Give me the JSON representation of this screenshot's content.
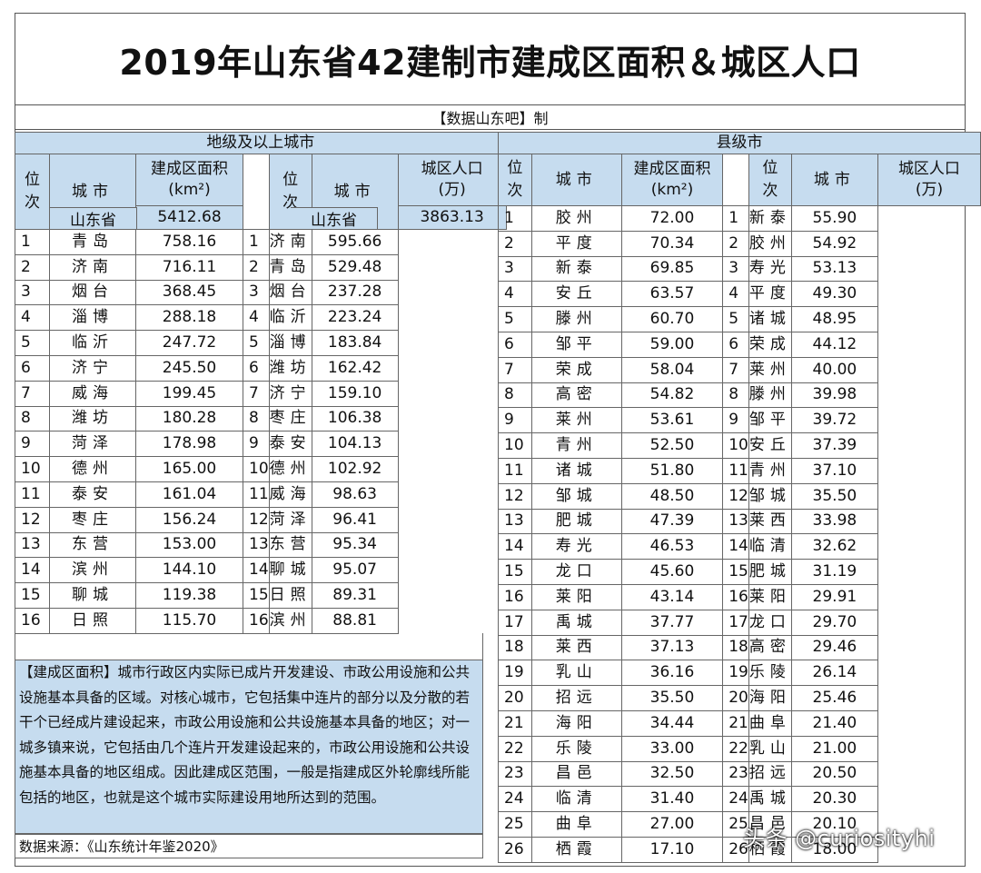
{
  "title": "2019年山东省42建制市建成区面积＆城区人口",
  "maker": "【数据山东吧】制",
  "prefecture": {
    "section": "地级及以上城市",
    "rank_header": "位次",
    "city_header": "城市",
    "area_header_line1": "建成区面积",
    "area_header_line2": "(km²)",
    "pop_header_line1": "城区人口",
    "pop_header_line2": "(万)",
    "area_total_name": "山东省",
    "area_total_value": "5412.68",
    "pop_total_name": "山东省",
    "pop_total_value": "3863.13",
    "rows": [
      {
        "r1": "1",
        "c1": "青岛",
        "v1": "758.16",
        "r2": "1",
        "c2": "济南",
        "v2": "595.66"
      },
      {
        "r1": "2",
        "c1": "济南",
        "v1": "716.11",
        "r2": "2",
        "c2": "青岛",
        "v2": "529.48"
      },
      {
        "r1": "3",
        "c1": "烟台",
        "v1": "368.45",
        "r2": "3",
        "c2": "烟台",
        "v2": "237.28"
      },
      {
        "r1": "4",
        "c1": "淄博",
        "v1": "288.18",
        "r2": "4",
        "c2": "临沂",
        "v2": "223.24"
      },
      {
        "r1": "5",
        "c1": "临沂",
        "v1": "247.72",
        "r2": "5",
        "c2": "淄博",
        "v2": "183.84"
      },
      {
        "r1": "6",
        "c1": "济宁",
        "v1": "245.50",
        "r2": "6",
        "c2": "潍坊",
        "v2": "162.42"
      },
      {
        "r1": "7",
        "c1": "威海",
        "v1": "199.45",
        "r2": "7",
        "c2": "济宁",
        "v2": "159.10"
      },
      {
        "r1": "8",
        "c1": "潍坊",
        "v1": "180.28",
        "r2": "8",
        "c2": "枣庄",
        "v2": "106.38"
      },
      {
        "r1": "9",
        "c1": "菏泽",
        "v1": "178.98",
        "r2": "9",
        "c2": "泰安",
        "v2": "104.13"
      },
      {
        "r1": "10",
        "c1": "德州",
        "v1": "165.00",
        "r2": "10",
        "c2": "德州",
        "v2": "102.92"
      },
      {
        "r1": "11",
        "c1": "泰安",
        "v1": "161.04",
        "r2": "11",
        "c2": "威海",
        "v2": "98.63"
      },
      {
        "r1": "12",
        "c1": "枣庄",
        "v1": "156.24",
        "r2": "12",
        "c2": "菏泽",
        "v2": "96.41"
      },
      {
        "r1": "13",
        "c1": "东营",
        "v1": "153.00",
        "r2": "13",
        "c2": "东营",
        "v2": "95.34"
      },
      {
        "r1": "14",
        "c1": "滨州",
        "v1": "144.10",
        "r2": "14",
        "c2": "聊城",
        "v2": "95.07"
      },
      {
        "r1": "15",
        "c1": "聊城",
        "v1": "119.38",
        "r2": "15",
        "c2": "日照",
        "v2": "89.31"
      },
      {
        "r1": "16",
        "c1": "日照",
        "v1": "115.70",
        "r2": "16",
        "c2": "滨州",
        "v2": "88.81"
      }
    ]
  },
  "county": {
    "section": "县级市",
    "rank_header": "位次",
    "city_header": "城市",
    "area_header_line1": "建成区面积",
    "area_header_line2": "(km²)",
    "pop_header_line1": "城区人口",
    "pop_header_line2": "(万)",
    "rows": [
      {
        "r1": "1",
        "c1": "胶州",
        "v1": "72.00",
        "r2": "1",
        "c2": "新泰",
        "v2": "55.90"
      },
      {
        "r1": "2",
        "c1": "平度",
        "v1": "70.34",
        "r2": "2",
        "c2": "胶州",
        "v2": "54.92"
      },
      {
        "r1": "3",
        "c1": "新泰",
        "v1": "69.85",
        "r2": "3",
        "c2": "寿光",
        "v2": "53.13"
      },
      {
        "r1": "4",
        "c1": "安丘",
        "v1": "63.57",
        "r2": "4",
        "c2": "平度",
        "v2": "49.30"
      },
      {
        "r1": "5",
        "c1": "滕州",
        "v1": "60.70",
        "r2": "5",
        "c2": "诸城",
        "v2": "48.95"
      },
      {
        "r1": "6",
        "c1": "邹平",
        "v1": "59.00",
        "r2": "6",
        "c2": "荣成",
        "v2": "44.12"
      },
      {
        "r1": "7",
        "c1": "荣成",
        "v1": "58.04",
        "r2": "7",
        "c2": "莱州",
        "v2": "40.00"
      },
      {
        "r1": "8",
        "c1": "高密",
        "v1": "54.82",
        "r2": "8",
        "c2": "滕州",
        "v2": "39.98"
      },
      {
        "r1": "9",
        "c1": "莱州",
        "v1": "53.61",
        "r2": "9",
        "c2": "邹平",
        "v2": "39.72"
      },
      {
        "r1": "10",
        "c1": "青州",
        "v1": "52.50",
        "r2": "10",
        "c2": "安丘",
        "v2": "37.39"
      },
      {
        "r1": "11",
        "c1": "诸城",
        "v1": "51.80",
        "r2": "11",
        "c2": "青州",
        "v2": "37.10"
      },
      {
        "r1": "12",
        "c1": "邹城",
        "v1": "48.50",
        "r2": "12",
        "c2": "邹城",
        "v2": "35.50"
      },
      {
        "r1": "13",
        "c1": "肥城",
        "v1": "47.39",
        "r2": "13",
        "c2": "莱西",
        "v2": "33.98"
      },
      {
        "r1": "14",
        "c1": "寿光",
        "v1": "46.53",
        "r2": "14",
        "c2": "临清",
        "v2": "32.62"
      },
      {
        "r1": "15",
        "c1": "龙口",
        "v1": "45.60",
        "r2": "15",
        "c2": "肥城",
        "v2": "31.19"
      },
      {
        "r1": "16",
        "c1": "莱阳",
        "v1": "43.14",
        "r2": "16",
        "c2": "莱阳",
        "v2": "29.91"
      },
      {
        "r1": "17",
        "c1": "禹城",
        "v1": "37.77",
        "r2": "17",
        "c2": "龙口",
        "v2": "29.70"
      },
      {
        "r1": "18",
        "c1": "莱西",
        "v1": "37.13",
        "r2": "18",
        "c2": "高密",
        "v2": "29.46"
      },
      {
        "r1": "19",
        "c1": "乳山",
        "v1": "36.16",
        "r2": "19",
        "c2": "乐陵",
        "v2": "26.14"
      },
      {
        "r1": "20",
        "c1": "招远",
        "v1": "35.50",
        "r2": "20",
        "c2": "海阳",
        "v2": "25.46"
      },
      {
        "r1": "21",
        "c1": "海阳",
        "v1": "34.44",
        "r2": "21",
        "c2": "曲阜",
        "v2": "21.40"
      },
      {
        "r1": "22",
        "c1": "乐陵",
        "v1": "33.00",
        "r2": "22",
        "c2": "乳山",
        "v2": "21.00"
      },
      {
        "r1": "23",
        "c1": "昌邑",
        "v1": "32.50",
        "r2": "23",
        "c2": "招远",
        "v2": "20.50"
      },
      {
        "r1": "24",
        "c1": "临清",
        "v1": "31.40",
        "r2": "24",
        "c2": "禹城",
        "v2": "20.30"
      },
      {
        "r1": "25",
        "c1": "曲阜",
        "v1": "27.00",
        "r2": "25",
        "c2": "昌邑",
        "v2": "20.10"
      },
      {
        "r1": "26",
        "c1": "栖霞",
        "v1": "17.10",
        "r2": "26",
        "c2": "栖霞",
        "v2": "18.00"
      }
    ]
  },
  "definition": "【建成区面积】城市行政区内实际已成片开发建设、市政公用设施和公共设施基本具备的区域。对核心城市，它包括集中连片的部分以及分散的若干个已经成片建设起来，市政公用设施和公共设施基本具备的地区；对一城多镇来说，它包括由几个连片开发建设起来的，市政公用设施和公共设施基本具备的地区组成。因此建成区范围，一般是指建成区外轮廓线所能包括的地区，也就是这个城市实际建设用地所达到的范围。",
  "source": "数据来源：《山东统计年鉴2020》",
  "watermark": "头条 @curiosityhi"
}
